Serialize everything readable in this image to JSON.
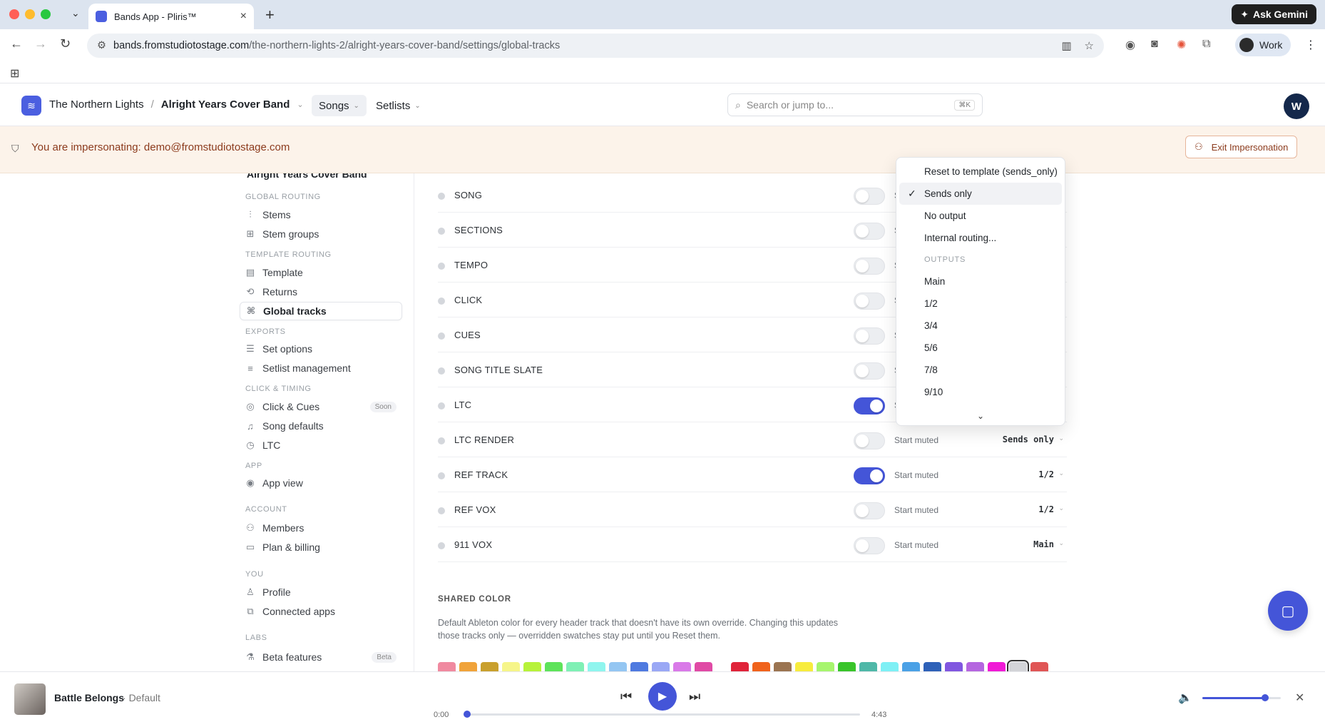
{
  "browser": {
    "tab_title": "Bands App - Pliris™",
    "url_host": "bands.fromstudiotostage.com",
    "url_path": "/the-northern-lights-2/alright-years-cover-band/settings/global-tracks",
    "ask_gemini": "Ask Gemini",
    "profile_name": "Work"
  },
  "header": {
    "org": "The Northern Lights",
    "band": "Alright Years Cover Band",
    "tabs": [
      {
        "label": "Songs"
      },
      {
        "label": "Setlists"
      }
    ],
    "search_placeholder": "Search or jump to...",
    "search_kbd": "⌘K",
    "avatar": "W"
  },
  "banner": {
    "message": "You are impersonating: demo@fromstudiotostage.com",
    "exit_label": "Exit Impersonation"
  },
  "sidebar": {
    "band": "Alright Years Cover Band",
    "groups": [
      {
        "label": "GLOBAL ROUTING",
        "items": [
          {
            "label": "Stems",
            "icon": "waveform-icon"
          },
          {
            "label": "Stem groups",
            "icon": "grid-icon"
          }
        ]
      },
      {
        "label": "TEMPLATE ROUTING",
        "items": [
          {
            "label": "Template",
            "icon": "layout-icon"
          },
          {
            "label": "Returns",
            "icon": "repeat-icon"
          },
          {
            "label": "Global tracks",
            "icon": "tracks-icon",
            "active": true
          }
        ]
      },
      {
        "label": "EXPORTS",
        "items": [
          {
            "label": "Set options",
            "icon": "sliders-icon"
          },
          {
            "label": "Setlist management",
            "icon": "list-icon"
          }
        ]
      },
      {
        "label": "CLICK & TIMING",
        "items": [
          {
            "label": "Click & Cues",
            "icon": "radio-icon",
            "badge": "Soon"
          },
          {
            "label": "Song defaults",
            "icon": "music-note-icon"
          },
          {
            "label": "LTC",
            "icon": "stopwatch-icon"
          }
        ]
      },
      {
        "label": "APP",
        "items": [
          {
            "label": "App view",
            "icon": "eye-icon"
          }
        ]
      },
      {
        "label": "ACCOUNT",
        "items": [
          {
            "label": "Members",
            "icon": "users-icon"
          },
          {
            "label": "Plan & billing",
            "icon": "card-icon"
          }
        ]
      },
      {
        "label": "YOU",
        "items": [
          {
            "label": "Profile",
            "icon": "user-icon"
          },
          {
            "label": "Connected apps",
            "icon": "apps-icon"
          }
        ]
      },
      {
        "label": "LABS",
        "items": [
          {
            "label": "Beta features",
            "icon": "flask-icon",
            "badge": "Beta"
          }
        ]
      }
    ]
  },
  "tracks": [
    {
      "name": "SONG",
      "on": false,
      "muted_label": "S",
      "route": ""
    },
    {
      "name": "SECTIONS",
      "on": false,
      "muted_label": "S",
      "route": ""
    },
    {
      "name": "TEMPO",
      "on": false,
      "muted_label": "S",
      "route": ""
    },
    {
      "name": "CLICK",
      "on": false,
      "muted_label": "S",
      "route": ""
    },
    {
      "name": "CUES",
      "on": false,
      "muted_label": "S",
      "route": ""
    },
    {
      "name": "SONG TITLE SLATE",
      "on": false,
      "muted_label": "S",
      "route": ""
    },
    {
      "name": "LTC",
      "on": true,
      "muted_label": "S",
      "route": ""
    },
    {
      "name": "LTC RENDER",
      "on": false,
      "muted_label": "Start muted",
      "route": "Sends only"
    },
    {
      "name": "REF TRACK",
      "on": true,
      "muted_label": "Start muted",
      "route": "1/2"
    },
    {
      "name": "REF VOX",
      "on": false,
      "muted_label": "Start muted",
      "route": "1/2"
    },
    {
      "name": "911 VOX",
      "on": false,
      "muted_label": "Start muted",
      "route": "Main"
    }
  ],
  "shared_color": {
    "title": "SHARED COLOR",
    "description": "Default Ableton color for every header track that doesn't have its own override. Changing this updates those tracks only — overridden swatches stay put until you Reset them.",
    "swatches": [
      "#f08aa0",
      "#f0a33a",
      "#c9a02e",
      "#f6f58a",
      "#b7f23a",
      "#5ee35a",
      "#7ff0b5",
      "#8ff5ee",
      "#94c6f2",
      "#4f7ae0",
      "#9aa8f5",
      "#d97ae8",
      "#e04aa5",
      "#ffffff",
      "#e0243a",
      "#f0631c",
      "#9b7451",
      "#f7ec3e",
      "#a7f56e",
      "#39c42a",
      "#4fb8a8",
      "#7ef0f5",
      "#4ba1e6",
      "#2e61b8",
      "#8157e0",
      "#b566e0",
      "#f01ad6",
      "#d3d4d8",
      "#e05656"
    ],
    "selected_index": 27
  },
  "dropdown": {
    "items": [
      {
        "label": "Reset to template (sends_only)",
        "checked": false
      },
      {
        "label": "Sends only",
        "checked": true
      },
      {
        "label": "No output",
        "checked": false
      },
      {
        "label": "Internal routing...",
        "checked": false
      }
    ],
    "group_label": "OUTPUTS",
    "outputs": [
      "Main",
      "1/2",
      "3/4",
      "5/6",
      "7/8",
      "9/10"
    ]
  },
  "player": {
    "title": "Battle Belongs",
    "separator": "·",
    "subtitle": "Default",
    "time_current": "0:00",
    "time_total": "4:43",
    "progress": 0,
    "volume": 0.8
  }
}
